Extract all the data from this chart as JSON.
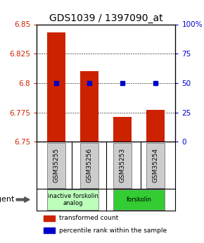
{
  "title": "GDS1039 / 1397090_at",
  "samples": [
    "GSM35255",
    "GSM35256",
    "GSM35253",
    "GSM35254"
  ],
  "bar_values": [
    6.843,
    6.81,
    6.771,
    6.777
  ],
  "bar_bottom": 6.75,
  "blue_dot_values": [
    6.8,
    6.8,
    6.8,
    6.8
  ],
  "ylim_left": [
    6.75,
    6.85
  ],
  "ylim_right": [
    0,
    100
  ],
  "yticks_left": [
    6.75,
    6.775,
    6.8,
    6.825,
    6.85
  ],
  "ytick_labels_left": [
    "6.75",
    "6.775",
    "6.8",
    "6.825",
    "6.85"
  ],
  "yticks_right": [
    0,
    25,
    50,
    75,
    100
  ],
  "ytick_labels_right": [
    "0",
    "25",
    "50",
    "75",
    "100%"
  ],
  "bar_color": "#cc2200",
  "dot_color": "#0000cc",
  "groups": [
    {
      "label": "inactive forskolin\nanalog",
      "samples": [
        0,
        1
      ],
      "color": "#bbffbb"
    },
    {
      "label": "forskolin",
      "samples": [
        2,
        3
      ],
      "color": "#33cc33"
    }
  ],
  "agent_label": "agent",
  "legend_items": [
    {
      "color": "#cc2200",
      "label": "transformed count"
    },
    {
      "color": "#0000cc",
      "label": "percentile rank within the sample"
    }
  ],
  "title_fontsize": 10,
  "tick_fontsize": 7.5,
  "bar_width": 0.55,
  "background_color": "#ffffff",
  "sample_box_color": "#cccccc"
}
